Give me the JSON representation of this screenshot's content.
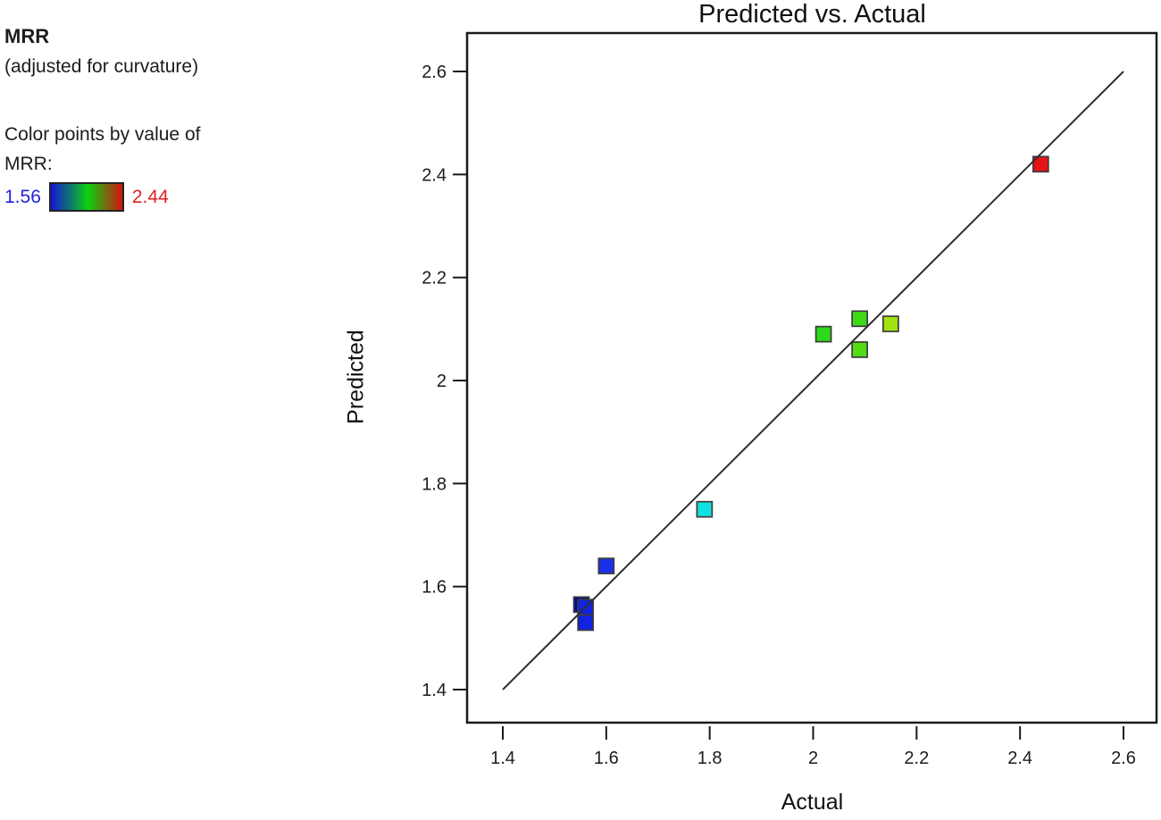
{
  "legend": {
    "title": "MRR",
    "subtitle": "(adjusted for curvature)",
    "note_line1": "Color points by value of",
    "note_line2": "MRR:",
    "min_label": "1.56",
    "max_label": "2.44",
    "min_label_color": "#2222dd",
    "max_label_color": "#dd2222",
    "gradient_stops": [
      "#1414d8 0%",
      "#0bd20f 52%",
      "#d31111 100%"
    ]
  },
  "chart_data": {
    "type": "scatter",
    "title": "Predicted vs. Actual",
    "xlabel": "Actual",
    "ylabel": "Predicted",
    "xlim": [
      1.4,
      2.6
    ],
    "ylim": [
      1.4,
      2.6
    ],
    "grid": false,
    "xticks": [
      {
        "value": 1.4,
        "label": "1.4"
      },
      {
        "value": 1.6,
        "label": "1.6"
      },
      {
        "value": 1.8,
        "label": "1.8"
      },
      {
        "value": 2.0,
        "label": "2"
      },
      {
        "value": 2.2,
        "label": "2.2"
      },
      {
        "value": 2.4,
        "label": "2.4"
      },
      {
        "value": 2.6,
        "label": "2.6"
      }
    ],
    "yticks": [
      {
        "value": 1.4,
        "label": "1.4"
      },
      {
        "value": 1.6,
        "label": "1.6"
      },
      {
        "value": 1.8,
        "label": "1.8"
      },
      {
        "value": 2.0,
        "label": "2"
      },
      {
        "value": 2.2,
        "label": "2.2"
      },
      {
        "value": 2.4,
        "label": "2.4"
      },
      {
        "value": 2.6,
        "label": "2.6"
      }
    ],
    "identity_line": {
      "x1": 1.4,
      "y1": 1.4,
      "x2": 2.6,
      "y2": 2.6,
      "color": "#2e2e2e"
    },
    "marker": {
      "shape": "square",
      "size": 17,
      "border_color": "#3c3c3c"
    },
    "points": [
      {
        "actual": 1.552,
        "predicted": 1.565,
        "color": "#000a96"
      },
      {
        "actual": 1.56,
        "predicted": 1.56,
        "color": "#1022e2"
      },
      {
        "actual": 1.56,
        "predicted": 1.53,
        "color": "#1022e2"
      },
      {
        "actual": 1.6,
        "predicted": 1.64,
        "color": "#1a30ea"
      },
      {
        "actual": 1.79,
        "predicted": 1.75,
        "color": "#10e0e0"
      },
      {
        "actual": 2.02,
        "predicted": 2.09,
        "color": "#2ed81c"
      },
      {
        "actual": 2.09,
        "predicted": 2.12,
        "color": "#3eda18"
      },
      {
        "actual": 2.09,
        "predicted": 2.06,
        "color": "#52dc16"
      },
      {
        "actual": 2.15,
        "predicted": 2.11,
        "color": "#a2e211"
      },
      {
        "actual": 2.44,
        "predicted": 2.42,
        "color": "#e41315"
      }
    ]
  }
}
